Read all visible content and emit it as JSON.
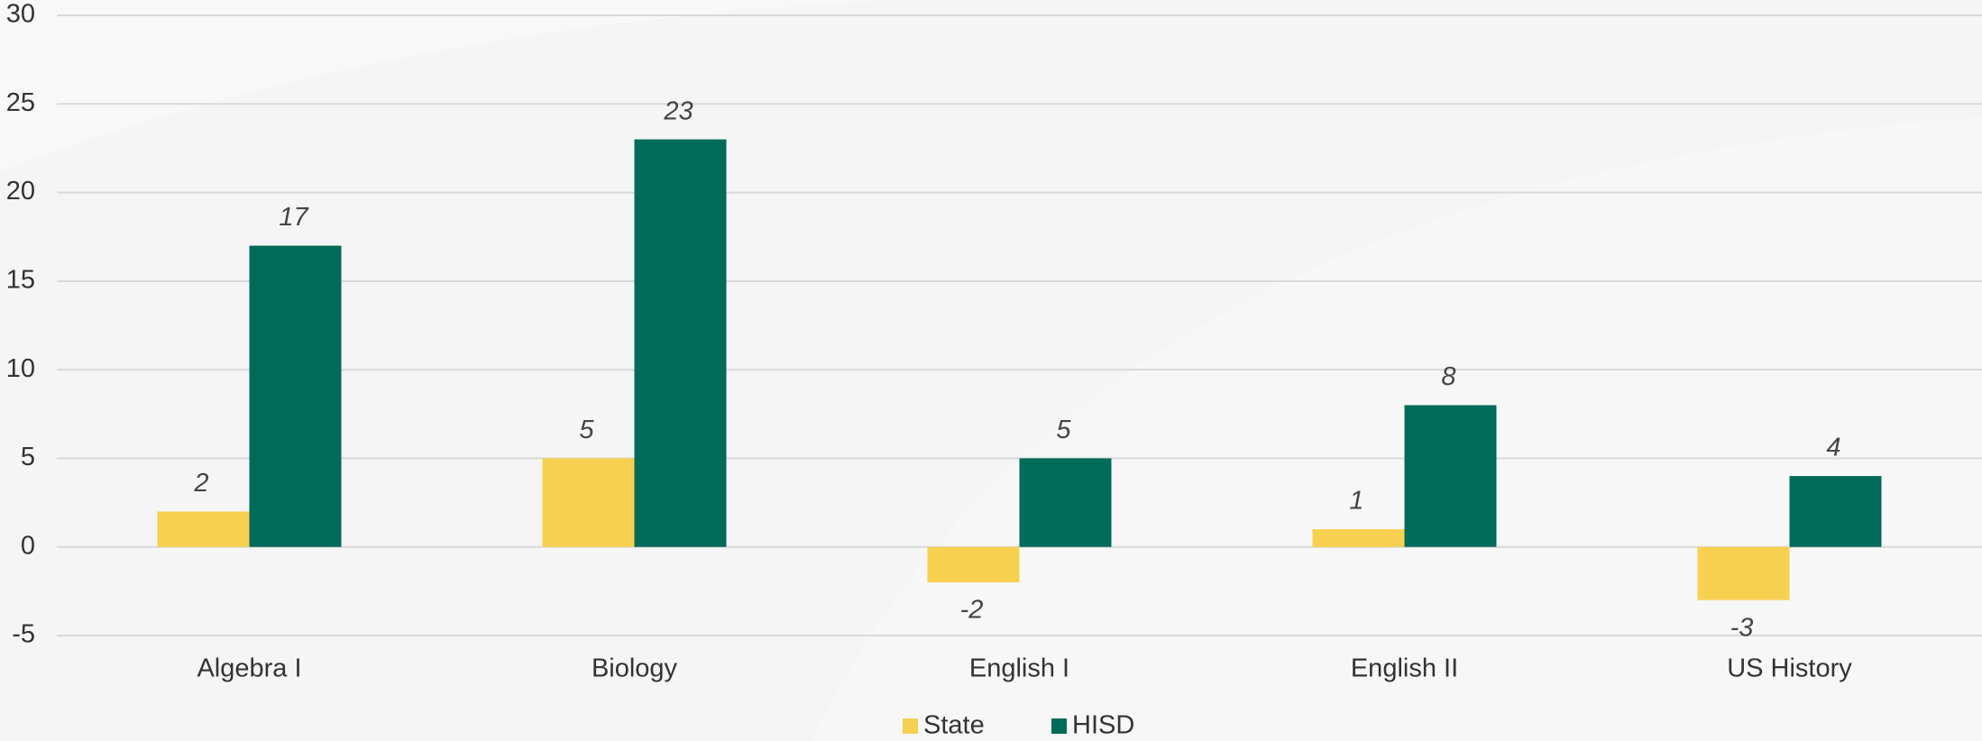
{
  "chart_data": {
    "type": "bar",
    "categories": [
      "Algebra I",
      "Biology",
      "English I",
      "English II",
      "US History"
    ],
    "series": [
      {
        "name": "State",
        "color": "#f8d04f",
        "values": [
          2,
          5,
          -2,
          1,
          -3
        ]
      },
      {
        "name": "HISD",
        "color": "#006b58",
        "values": [
          17,
          23,
          5,
          8,
          4
        ]
      }
    ],
    "ylim": [
      -5,
      30
    ],
    "yticks": [
      -5,
      0,
      5,
      10,
      15,
      20,
      25,
      30
    ],
    "grid": true,
    "legend": "bottom"
  }
}
